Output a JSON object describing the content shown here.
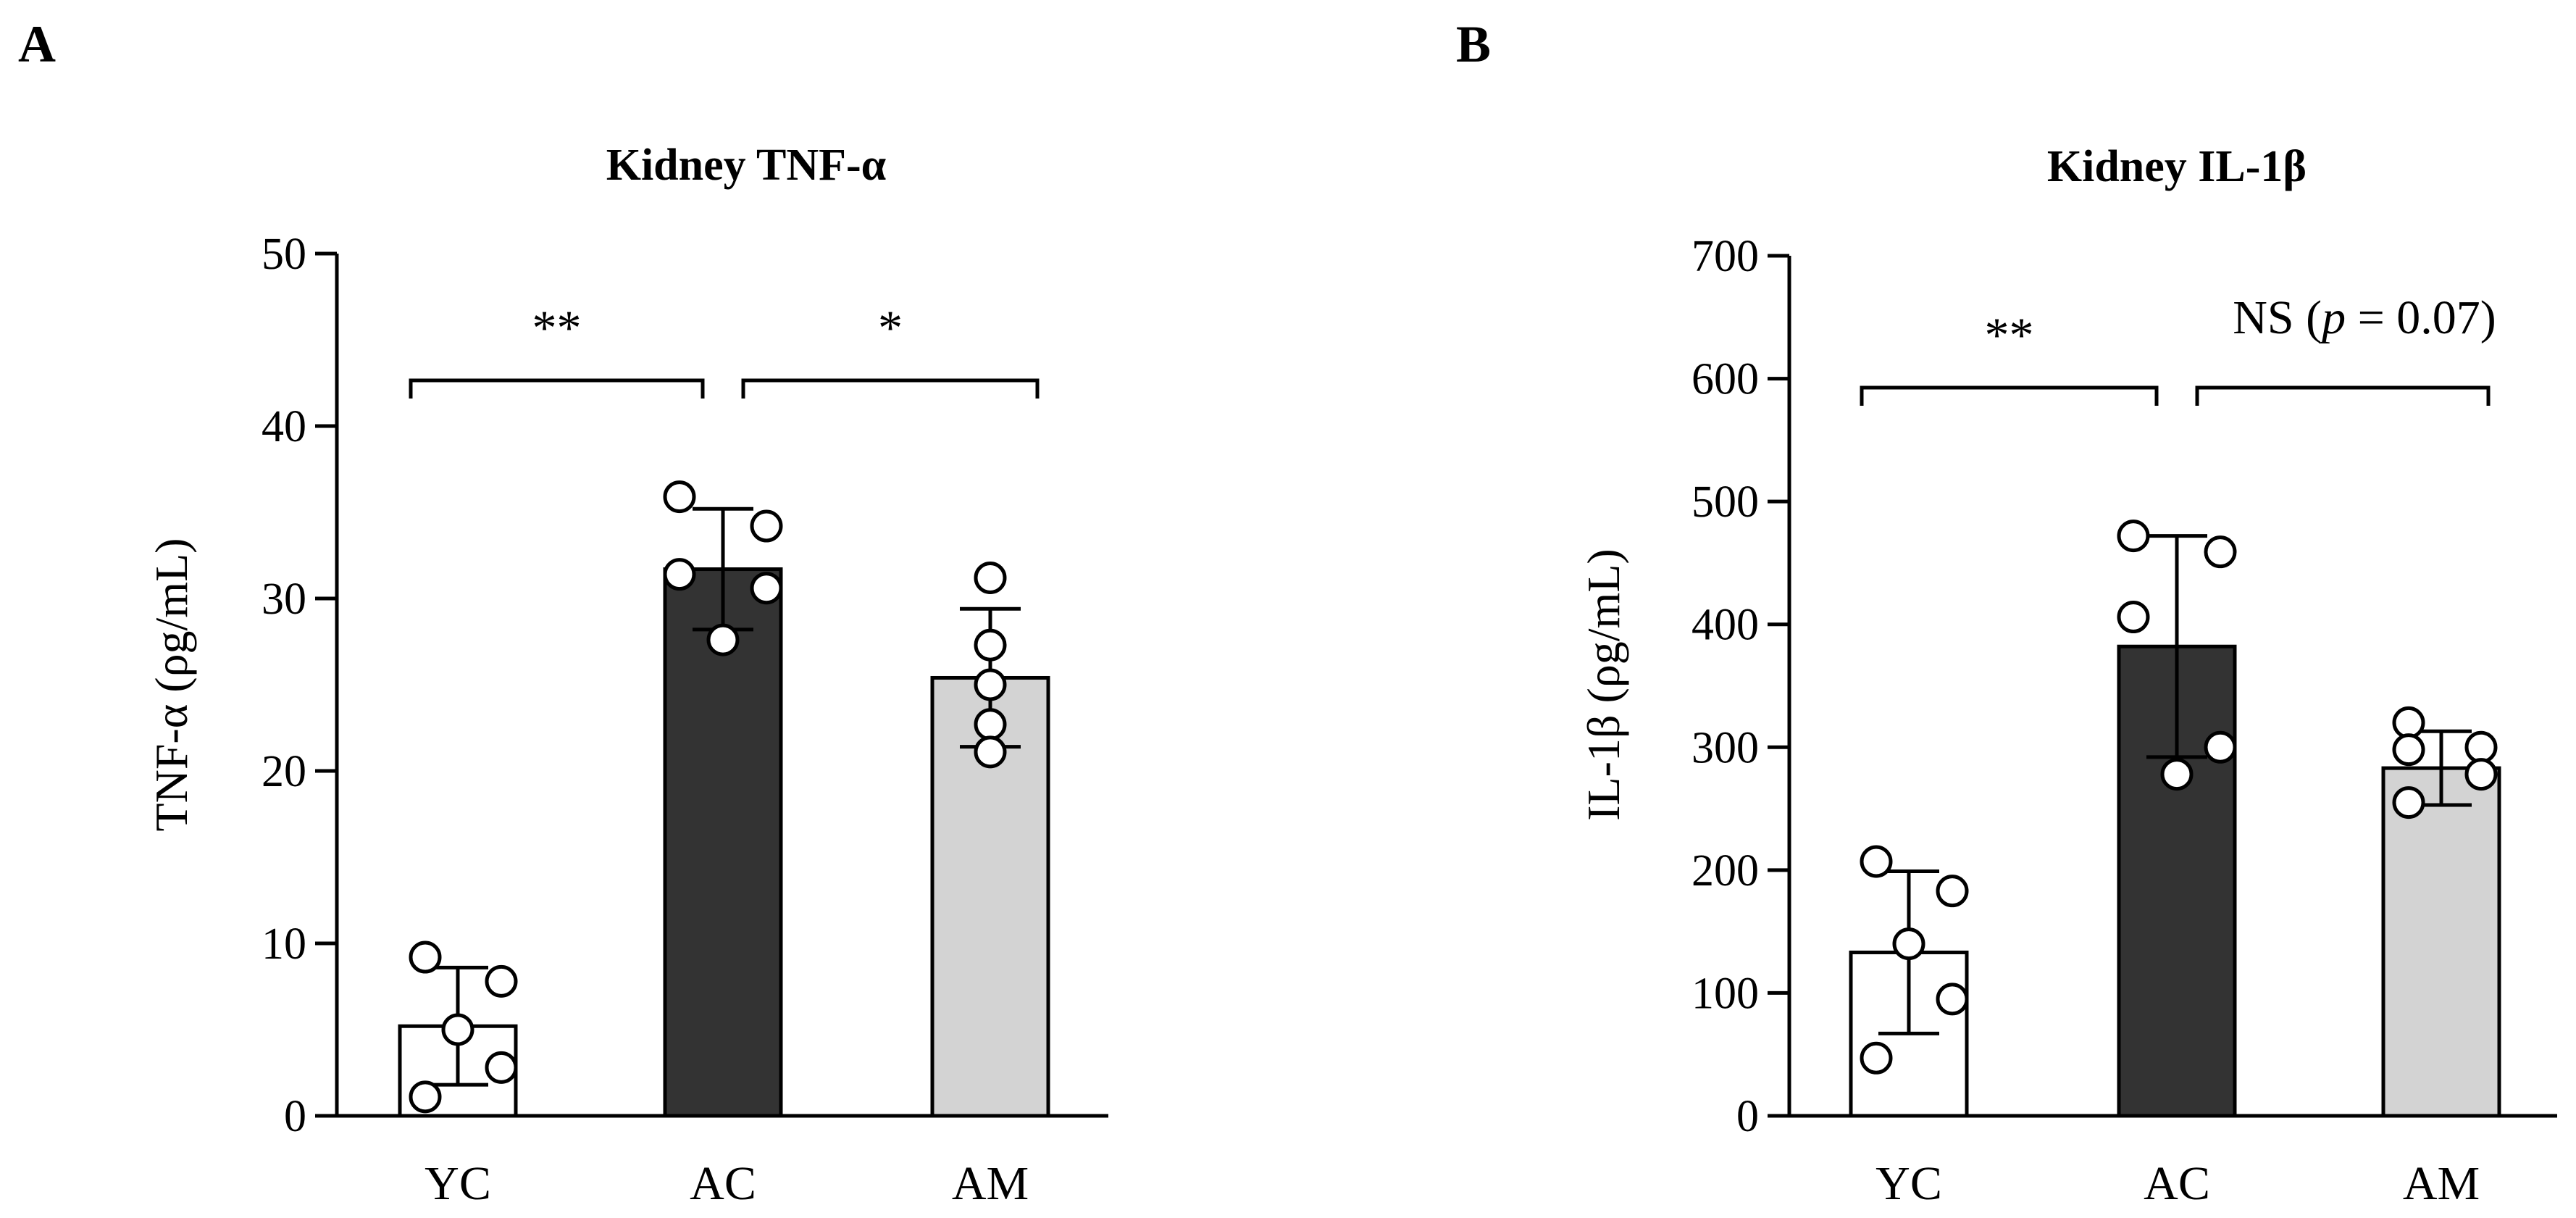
{
  "chart_data": [
    {
      "panel": "A",
      "type": "bar",
      "title": "Kidney TNF-α",
      "xlabel": "",
      "ylabel": "TNF-α (ρg/mL)",
      "ylim": [
        0,
        50
      ],
      "yticks": [
        0,
        10,
        20,
        30,
        40,
        50
      ],
      "categories": [
        "YC",
        "AC",
        "AM"
      ],
      "values": [
        5.2,
        31.7,
        25.4
      ],
      "errors": [
        3.4,
        3.5,
        4.0
      ],
      "bar_colors": [
        "#ffffff",
        "#333333",
        "#d3d3d3"
      ],
      "points": [
        [
          9.2,
          7.8,
          5.0,
          2.8,
          1.1
        ],
        [
          35.9,
          34.2,
          31.4,
          30.6,
          27.6
        ],
        [
          31.2,
          27.3,
          25.0,
          22.7,
          21.1
        ]
      ],
      "comparisons": [
        {
          "from": 0,
          "to": 1,
          "label": "**"
        },
        {
          "from": 1,
          "to": 2,
          "label": "*"
        }
      ]
    },
    {
      "panel": "B",
      "type": "bar",
      "title": "Kidney IL-1β",
      "xlabel": "",
      "ylabel": "IL-1β (ρg/mL)",
      "ylim": [
        0,
        700
      ],
      "yticks": [
        0,
        100,
        200,
        300,
        400,
        500,
        600,
        700
      ],
      "categories": [
        "YC",
        "AC",
        "AM"
      ],
      "values": [
        133,
        382,
        283
      ],
      "errors": [
        66,
        90,
        30
      ],
      "bar_colors": [
        "#ffffff",
        "#333333",
        "#d3d3d3"
      ],
      "points": [
        [
          207,
          183,
          140,
          95,
          47
        ],
        [
          472,
          459,
          406,
          300,
          278
        ],
        [
          320,
          300,
          298,
          278,
          255
        ]
      ],
      "comparisons": [
        {
          "from": 0,
          "to": 1,
          "label": "**"
        },
        {
          "from": 1,
          "to": 2,
          "label": "NS (p = 0.07)",
          "prefix": "NS (",
          "italic": "p",
          "suffix": " = 0.07)"
        }
      ]
    }
  ]
}
